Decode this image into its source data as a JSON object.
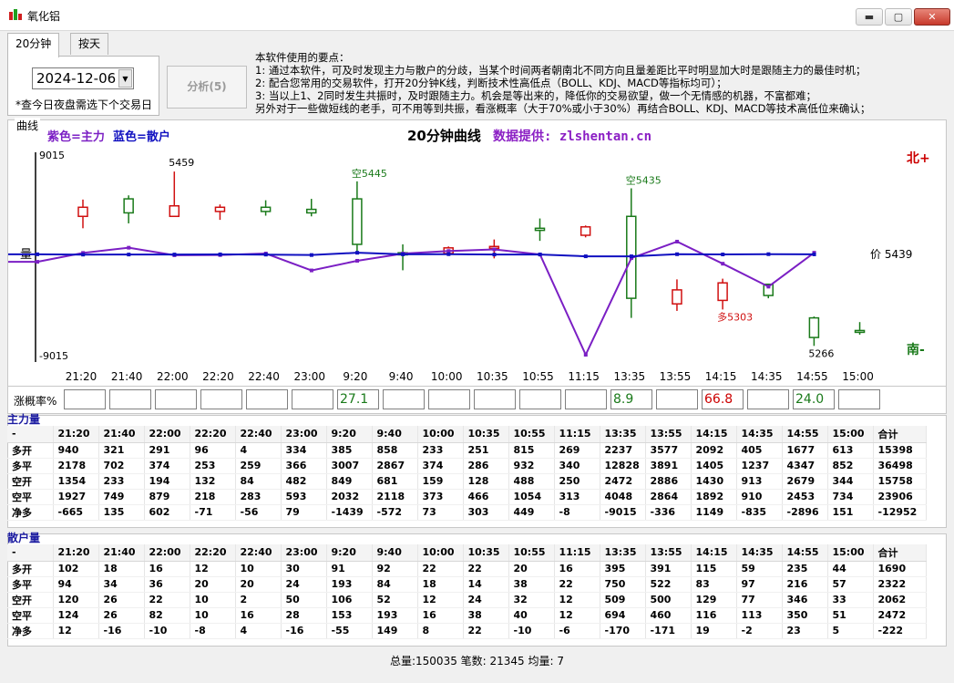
{
  "window": {
    "title": "氧化铝",
    "minimize": "▬",
    "maximize": "▢",
    "close": "✕"
  },
  "tabs": [
    {
      "label": "20分钟"
    },
    {
      "label": "按天"
    }
  ],
  "date": {
    "value": "2024-12-06",
    "dropdown": "▼"
  },
  "hint": "*查今日夜盘需选下个交易日",
  "analyze_button": "分析(5)",
  "notes": [
    "本软件使用的要点：",
    "1: 通过本软件，可及时发现主力与散户的分歧，当某个时间两者朝南北不同方向且量差距比平时明显加大时是跟随主力的最佳时机；",
    "2: 配合您常用的交易软件，打开20分钟K线，判断技术性高低点（BOLL、KDJ、MACD等指标均可）；",
    "3: 当以上1、2同时发生共振时，及时跟随主力。机会是等出来的，降低你的交易欲望，做一个无情感的机器，不富都难；",
    "另外对于一些做短线的老手，可不用等到共振，看涨概率（大于70%或小于30%）再结合BOLL、KDJ、MACD等技术高低位来确认；"
  ],
  "chart_label": "曲线",
  "chart_data": {
    "type": "line",
    "title": "20分钟曲线",
    "source": "数据提供: zlshentan.cn",
    "legend_main": "紫色=主力",
    "legend_retail": "蓝色=散户",
    "ylabel": "量",
    "north": "北+",
    "south": "南-",
    "ylim": [
      -9015,
      9015
    ],
    "ymax_label": "9015",
    "ymin_label": "-9015",
    "categories": [
      "21:20",
      "21:40",
      "22:00",
      "22:20",
      "22:40",
      "23:00",
      "9:20",
      "9:40",
      "10:00",
      "10:35",
      "10:55",
      "11:15",
      "13:35",
      "13:55",
      "14:15",
      "14:35",
      "14:55",
      "15:00"
    ],
    "series": [
      {
        "name": "主力",
        "color": "#7b1fc4",
        "values": [
          -665,
          135,
          602,
          -71,
          -56,
          79,
          -1439,
          -572,
          73,
          303,
          449,
          -8,
          -9015,
          -336,
          1149,
          -835,
          -2896,
          151
        ]
      },
      {
        "name": "散户",
        "color": "#1010c0",
        "values": [
          12,
          -16,
          -10,
          -8,
          4,
          -16,
          -55,
          149,
          8,
          22,
          -10,
          -6,
          -170,
          -171,
          19,
          -2,
          23,
          5
        ]
      }
    ],
    "candles": [
      {
        "o": 5395,
        "c": 5408,
        "h": 5419,
        "l": 5378
      },
      {
        "o": 5420,
        "c": 5400,
        "h": 5425,
        "l": 5385
      },
      {
        "o": 5395,
        "c": 5410,
        "h": 5459,
        "l": 5395
      },
      {
        "o": 5402,
        "c": 5408,
        "h": 5412,
        "l": 5390
      },
      {
        "o": 5408,
        "c": 5402,
        "h": 5418,
        "l": 5396
      },
      {
        "o": 5405,
        "c": 5400,
        "h": 5420,
        "l": 5395
      },
      {
        "o": 5420,
        "c": 5355,
        "h": 5445,
        "l": 5345
      },
      {
        "o": 5343,
        "c": 5340,
        "h": 5355,
        "l": 5318
      },
      {
        "o": 5342,
        "c": 5350,
        "h": 5352,
        "l": 5340
      },
      {
        "o": 5350,
        "c": 5352,
        "h": 5362,
        "l": 5335
      },
      {
        "o": 5378,
        "c": 5375,
        "h": 5392,
        "l": 5360
      },
      {
        "o": 5368,
        "c": 5380,
        "h": 5382,
        "l": 5365
      },
      {
        "o": 5395,
        "c": 5278,
        "h": 5435,
        "l": 5250
      },
      {
        "o": 5270,
        "c": 5290,
        "h": 5305,
        "l": 5260
      },
      {
        "o": 5275,
        "c": 5300,
        "h": 5306,
        "l": 5262
      },
      {
        "o": 5298,
        "c": 5282,
        "h": 5299,
        "l": 5278
      },
      {
        "o": 5250,
        "c": 5222,
        "h": 5252,
        "l": 5210
      },
      {
        "o": 5232,
        "c": 5231,
        "h": 5244,
        "l": 5226
      }
    ],
    "price_min": 5200,
    "price_max": 5480,
    "annotations": [
      "5459",
      "空5445",
      "空5435",
      "多5303",
      "5266"
    ],
    "price_label": "价 5439"
  },
  "probability": {
    "label": "涨概率%",
    "values": [
      "",
      "",
      "",
      "",
      "",
      "",
      "27.1",
      "",
      "",
      "",
      "",
      "",
      "8.9",
      "",
      "66.8",
      "",
      "24.0",
      ""
    ],
    "colors": [
      "",
      "",
      "",
      "",
      "",
      "",
      "#1a7a1a",
      "",
      "",
      "",
      "",
      "",
      "#1a7a1a",
      "",
      "#cc0000",
      "",
      "#1a7a1a",
      ""
    ]
  },
  "main_table": {
    "title": "主力量",
    "header": [
      "-",
      "21:20",
      "21:40",
      "22:00",
      "22:20",
      "22:40",
      "23:00",
      "9:20",
      "9:40",
      "10:00",
      "10:35",
      "10:55",
      "11:15",
      "13:35",
      "13:55",
      "14:15",
      "14:35",
      "14:55",
      "15:00",
      "合计"
    ],
    "rows": [
      [
        "多开",
        "940",
        "321",
        "291",
        "96",
        "4",
        "334",
        "385",
        "858",
        "233",
        "251",
        "815",
        "269",
        "2237",
        "3577",
        "2092",
        "405",
        "1677",
        "613",
        "15398"
      ],
      [
        "多平",
        "2178",
        "702",
        "374",
        "253",
        "259",
        "366",
        "3007",
        "2867",
        "374",
        "286",
        "932",
        "340",
        "12828",
        "3891",
        "1405",
        "1237",
        "4347",
        "852",
        "36498"
      ],
      [
        "空开",
        "1354",
        "233",
        "194",
        "132",
        "84",
        "482",
        "849",
        "681",
        "159",
        "128",
        "488",
        "250",
        "2472",
        "2886",
        "1430",
        "913",
        "2679",
        "344",
        "15758"
      ],
      [
        "空平",
        "1927",
        "749",
        "879",
        "218",
        "283",
        "593",
        "2032",
        "2118",
        "373",
        "466",
        "1054",
        "313",
        "4048",
        "2864",
        "1892",
        "910",
        "2453",
        "734",
        "23906"
      ],
      [
        "净多",
        "-665",
        "135",
        "602",
        "-71",
        "-56",
        "79",
        "-1439",
        "-572",
        "73",
        "303",
        "449",
        "-8",
        "-9015",
        "-336",
        "1149",
        "-835",
        "-2896",
        "151",
        "-12952"
      ]
    ]
  },
  "retail_table": {
    "title": "散户量",
    "header": [
      "-",
      "21:20",
      "21:40",
      "22:00",
      "22:20",
      "22:40",
      "23:00",
      "9:20",
      "9:40",
      "10:00",
      "10:35",
      "10:55",
      "11:15",
      "13:35",
      "13:55",
      "14:15",
      "14:35",
      "14:55",
      "15:00",
      "合计"
    ],
    "rows": [
      [
        "多开",
        "102",
        "18",
        "16",
        "12",
        "10",
        "30",
        "91",
        "92",
        "22",
        "22",
        "20",
        "16",
        "395",
        "391",
        "115",
        "59",
        "235",
        "44",
        "1690"
      ],
      [
        "多平",
        "94",
        "34",
        "36",
        "20",
        "20",
        "24",
        "193",
        "84",
        "18",
        "14",
        "38",
        "22",
        "750",
        "522",
        "83",
        "97",
        "216",
        "57",
        "2322"
      ],
      [
        "空开",
        "120",
        "26",
        "22",
        "10",
        "2",
        "50",
        "106",
        "52",
        "12",
        "24",
        "32",
        "12",
        "509",
        "500",
        "129",
        "77",
        "346",
        "33",
        "2062"
      ],
      [
        "空平",
        "124",
        "26",
        "82",
        "10",
        "16",
        "28",
        "153",
        "193",
        "16",
        "38",
        "40",
        "12",
        "694",
        "460",
        "116",
        "113",
        "350",
        "51",
        "2472"
      ],
      [
        "净多",
        "12",
        "-16",
        "-10",
        "-8",
        "4",
        "-16",
        "-55",
        "149",
        "8",
        "22",
        "-10",
        "-6",
        "-170",
        "-171",
        "19",
        "-2",
        "23",
        "5",
        "-222"
      ]
    ]
  },
  "status": "总量:150035  笔数: 21345  均量: 7"
}
